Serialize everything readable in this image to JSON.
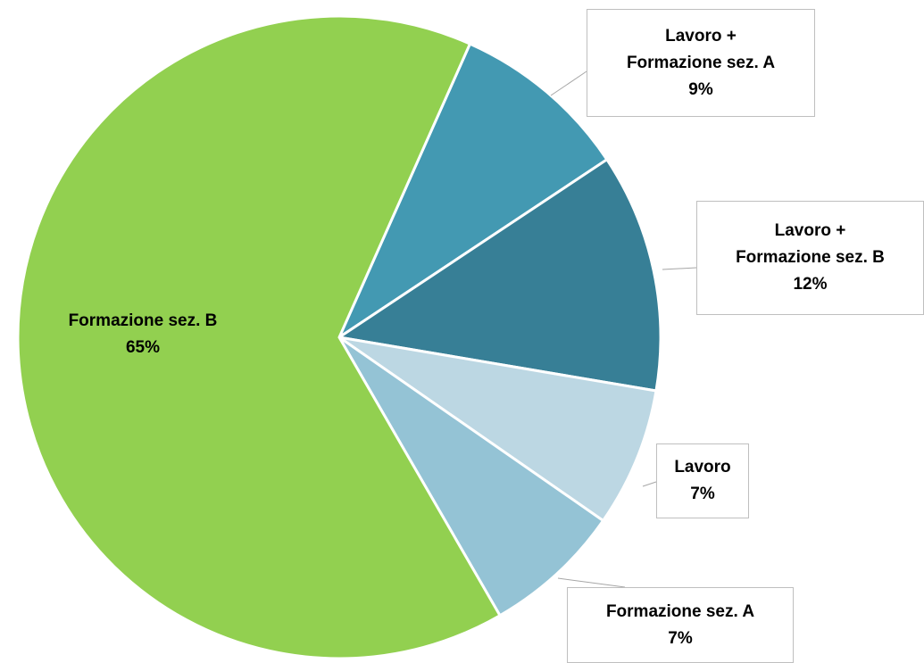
{
  "chart_data": {
    "type": "pie",
    "categories": [
      "Lavoro + Formazione sez. A",
      "Lavoro + Formazione sez. B",
      "Lavoro",
      "Formazione sez. A",
      "Formazione sez. B"
    ],
    "values": [
      9,
      12,
      7,
      7,
      65
    ],
    "value_labels": [
      "9%",
      "12%",
      "7%",
      "7%",
      "65%"
    ],
    "colors": [
      "#4399b2",
      "#377f96",
      "#bcd7e3",
      "#94c3d5",
      "#92d050"
    ]
  }
}
